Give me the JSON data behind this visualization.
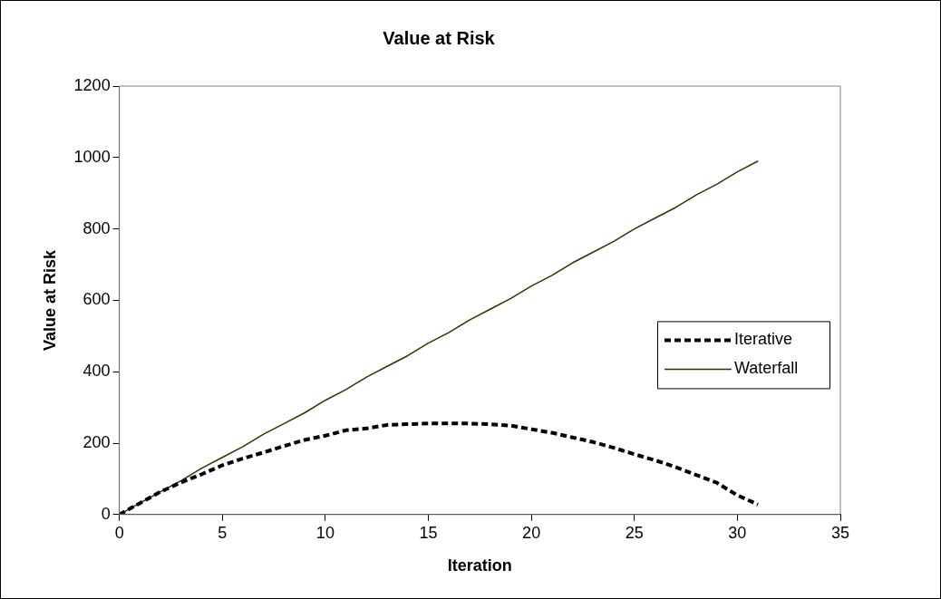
{
  "chart_data": {
    "type": "line",
    "title": "Value at Risk",
    "xlabel": "Iteration",
    "ylabel": "Value at Risk",
    "x": [
      0,
      1,
      2,
      3,
      4,
      5,
      6,
      7,
      8,
      9,
      10,
      11,
      12,
      13,
      14,
      15,
      16,
      17,
      18,
      19,
      20,
      21,
      22,
      23,
      24,
      25,
      26,
      27,
      28,
      29,
      30,
      31
    ],
    "series": [
      {
        "name": "Iterative",
        "color": "#000000",
        "line_style": "dashed",
        "values": [
          0,
          32,
          64,
          90,
          113,
          138,
          157,
          174,
          192,
          209,
          221,
          236,
          241,
          251,
          253,
          255,
          255,
          255,
          253,
          249,
          239,
          229,
          216,
          203,
          187,
          169,
          152,
          133,
          111,
          89,
          54,
          28
        ]
      },
      {
        "name": "Waterfall",
        "color": "#333300",
        "line_style": "solid",
        "values": [
          0,
          32,
          64,
          95,
          130,
          160,
          190,
          225,
          255,
          285,
          320,
          350,
          385,
          415,
          445,
          480,
          510,
          545,
          575,
          605,
          640,
          670,
          705,
          735,
          765,
          800,
          830,
          860,
          895,
          925,
          960,
          990
        ]
      }
    ],
    "xlim": [
      0,
      35
    ],
    "xticks": [
      0,
      5,
      10,
      15,
      20,
      25,
      30,
      35
    ],
    "ylim": [
      0,
      1200
    ],
    "yticks": [
      0,
      200,
      400,
      600,
      800,
      1000,
      1200
    ],
    "grid": false,
    "legend": "right",
    "marker": "none"
  }
}
